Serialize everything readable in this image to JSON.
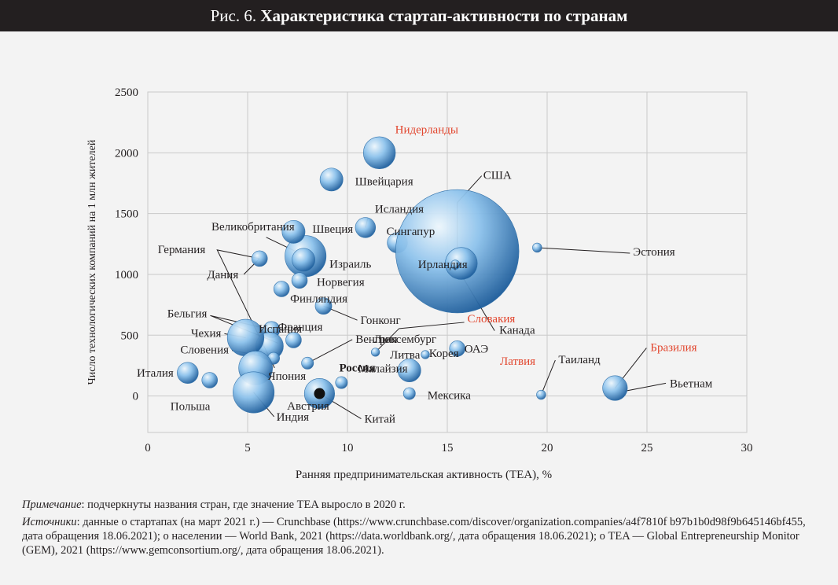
{
  "figure": {
    "prefix": "Рис. 6.",
    "title": "Характеристика стартап-активности по странам"
  },
  "chart_data": {
    "type": "scatter",
    "xlabel": "Ранняя предпринимательская активность (TEA), %",
    "ylabel": "Число технологических компаний на 1 млн жителей",
    "xlim": [
      0,
      30
    ],
    "ylim": [
      -300,
      2500
    ],
    "xticks": [
      0,
      5,
      10,
      15,
      20,
      25,
      30
    ],
    "yticks": [
      0,
      500,
      1000,
      1500,
      2000,
      2500
    ],
    "grid": true,
    "points": [
      {
        "name": "Нидерланды",
        "x": 11.6,
        "y": 2000,
        "size": 3,
        "highlight": true
      },
      {
        "name": "Швейцария",
        "x": 9.2,
        "y": 1780,
        "size": 2
      },
      {
        "name": "Исландия",
        "x": 10.9,
        "y": 1385,
        "size": 1.7
      },
      {
        "name": "Великобритания",
        "x": 7.9,
        "y": 1150,
        "size": 4
      },
      {
        "name": "Швеция",
        "x": 7.3,
        "y": 1350,
        "size": 2
      },
      {
        "name": "Израиль",
        "x": 7.8,
        "y": 1120,
        "size": 2
      },
      {
        "name": "Сингапур",
        "x": 12.5,
        "y": 1260,
        "size": 1.7
      },
      {
        "name": "США",
        "x": 15.5,
        "y": 1190,
        "size": 13
      },
      {
        "name": "Ирландия",
        "x": 15.7,
        "y": 1090,
        "size": 3
      },
      {
        "name": "Канада",
        "x": 15.4,
        "y": 1080,
        "size": 0.5
      },
      {
        "name": "Эстония",
        "x": 19.5,
        "y": 1220,
        "size": 0.5
      },
      {
        "name": "Германия",
        "x": 5.6,
        "y": 1130,
        "size": 1.2
      },
      {
        "name": "Дания",
        "x": 5.6,
        "y": 1130,
        "size": 0
      },
      {
        "name": "Норвегия",
        "x": 7.6,
        "y": 950,
        "size": 1.2
      },
      {
        "name": "Финляндия",
        "x": 6.7,
        "y": 880,
        "size": 1.2
      },
      {
        "name": "Люксембург",
        "x": 8.8,
        "y": 740,
        "size": 0
      },
      {
        "name": "Гонконг",
        "x": 8.8,
        "y": 740,
        "size": 1.3
      },
      {
        "name": "Бельгия",
        "x": 6.2,
        "y": 545,
        "size": 1.3
      },
      {
        "name": "Испания",
        "x": 6.1,
        "y": 410,
        "size": 2.5
      },
      {
        "name": "Франция",
        "x": 7.3,
        "y": 460,
        "size": 1.2
      },
      {
        "name": "Чехия",
        "x": 4.9,
        "y": 480,
        "size": 3.5
      },
      {
        "name": "Словения",
        "x": 6.3,
        "y": 310,
        "size": 0.8
      },
      {
        "name": "Венгрия",
        "x": 8,
        "y": 270,
        "size": 0.8
      },
      {
        "name": "Словакия",
        "x": 11.4,
        "y": 360,
        "size": 0.4,
        "highlight": true
      },
      {
        "name": "Литва",
        "x": 13.9,
        "y": 340,
        "size": 0.4
      },
      {
        "name": "ОАЭ",
        "x": 15.5,
        "y": 390,
        "size": 1.2
      },
      {
        "name": "Латвия",
        "x": 13.9,
        "y": 340,
        "size": 0,
        "highlight": true
      },
      {
        "name": "Таиланд",
        "x": 19.7,
        "y": 10,
        "size": 0.5
      },
      {
        "name": "Бразилия",
        "x": 23.4,
        "y": 65,
        "size": 2.2,
        "highlight": true
      },
      {
        "name": "Вьетнам",
        "x": 23.9,
        "y": 40,
        "size": 0
      },
      {
        "name": "Италия",
        "x": 2,
        "y": 190,
        "size": 1.8
      },
      {
        "name": "Польша",
        "x": 3.1,
        "y": 130,
        "size": 1.2
      },
      {
        "name": "Австрия",
        "x": 5.4,
        "y": 230,
        "size": 3.2
      },
      {
        "name": "Япония",
        "x": 5.3,
        "y": 30,
        "size": 4
      },
      {
        "name": "Индия",
        "x": 5.3,
        "y": 30,
        "size": 0
      },
      {
        "name": "Россия",
        "x": 8.6,
        "y": 20,
        "size": 2.8,
        "bold": true
      },
      {
        "name": "Китай",
        "x": 8.6,
        "y": 20,
        "size": 0
      },
      {
        "name": "Малайзия",
        "x": 9.7,
        "y": 110,
        "size": 0.8
      },
      {
        "name": "Корея",
        "x": 13.1,
        "y": 210,
        "size": 2
      },
      {
        "name": "Мексика",
        "x": 13.1,
        "y": 20,
        "size": 0.8
      }
    ]
  },
  "notes": {
    "note_label": "Примечание",
    "note_text": ": подчеркнуты названия стран, где значение TEA выросло в 2020 г.",
    "sources_label": "Источники",
    "sources_text": ": данные о стартапах (на март 2021 г.) — Crunchbase (https://www.crunchbase.com/discover/organization.companies/a4f7810f b97b1b0d98f9b645146bf455, дата обращения 18.06.2021); о населении — World Bank, 2021 (https://data.worldbank.org/, дата обращения 18.06.2021); о TEA — Global Entrepreneurship Monitor (GEM), 2021 (https://www.gemconsortium.org/, дата обращения 18.06.2021)."
  },
  "colors": {
    "highlight": "#e2452d",
    "bubble_light": "#e6f3fc",
    "bubble_mid": "#7db7e6",
    "bubble_dark": "#1e63a3",
    "grid": "#c9c9c9",
    "axis": "#231f20"
  }
}
